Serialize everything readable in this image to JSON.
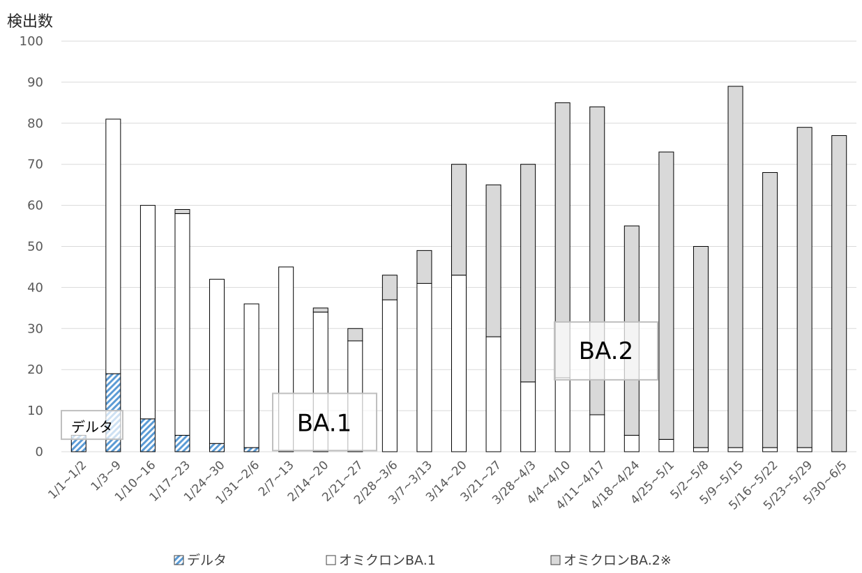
{
  "chart_data": {
    "type": "bar",
    "stacked": true,
    "ylabel": "検出数",
    "xlabel": "",
    "ylim": [
      0,
      100
    ],
    "yticks": [
      0,
      10,
      20,
      30,
      40,
      50,
      60,
      70,
      80,
      90,
      100
    ],
    "grid": true,
    "legend_position": "bottom",
    "categories": [
      "1/1~1/2",
      "1/3~9",
      "1/10~16",
      "1/17~23",
      "1/24~30",
      "1/31~2/6",
      "2/7~13",
      "2/14~20",
      "2/21~27",
      "2/28~3/6",
      "3/7~3/13",
      "3/14~20",
      "3/21~27",
      "3/28~4/3",
      "4/4~4/10",
      "4/11~4/17",
      "4/18~4/24",
      "4/25~5/1",
      "5/2~5/8",
      "5/9~5/15",
      "5/16~5/22",
      "5/23~5/29",
      "5/30~6/5"
    ],
    "series": [
      {
        "name": "デルタ",
        "color": "#5b9bd5",
        "pattern": "diagonal-hatch",
        "values": [
          4,
          19,
          8,
          4,
          2,
          1,
          0,
          0,
          0,
          0,
          0,
          0,
          0,
          0,
          0,
          0,
          0,
          0,
          0,
          0,
          0,
          0,
          0
        ]
      },
      {
        "name": "オミクロンBA.1",
        "color": "#ffffff",
        "values": [
          0,
          62,
          52,
          54,
          40,
          35,
          45,
          34,
          27,
          37,
          41,
          43,
          28,
          17,
          18,
          9,
          4,
          3,
          1,
          1,
          1,
          1,
          0
        ]
      },
      {
        "name": "オミクロンBA.2※",
        "color": "#d9d9d9",
        "values": [
          0,
          0,
          0,
          1,
          0,
          0,
          0,
          1,
          3,
          6,
          8,
          27,
          37,
          53,
          67,
          75,
          51,
          70,
          49,
          88,
          67,
          78,
          77
        ]
      }
    ],
    "annotations": [
      {
        "text": "デルタ",
        "size": "small"
      },
      {
        "text": "BA.1",
        "size": "large"
      },
      {
        "text": "BA.2",
        "size": "large"
      }
    ]
  }
}
